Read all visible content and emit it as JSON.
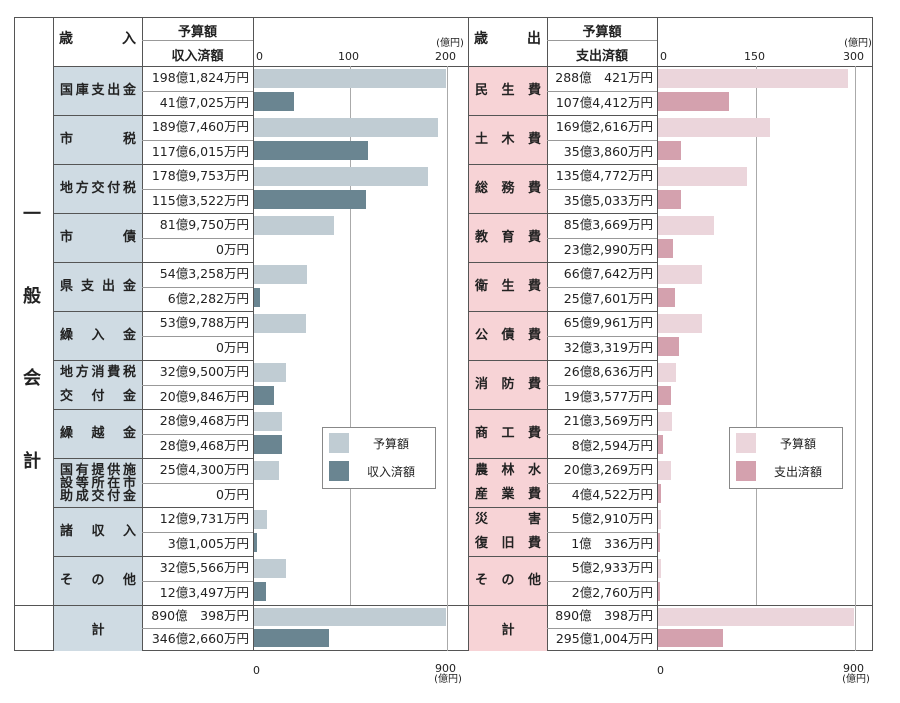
{
  "side_label": [
    "一",
    "般",
    "会",
    "計"
  ],
  "colors": {
    "rev_budget": "#c0ccd3",
    "rev_actual": "#6a8591",
    "exp_budget": "#ebd5db",
    "exp_actual": "#d4a1ae",
    "rev_cat_bg": "#cfdbe3",
    "exp_cat_bg": "#f7d3d6"
  },
  "revenue": {
    "header": {
      "title": "歳　　入",
      "col1": "予算額",
      "col2": "収入済額",
      "unit": "(億円)"
    },
    "legend": {
      "budget": "予算額",
      "actual": "収入済額"
    }
  },
  "expenditure": {
    "header": {
      "title": "歳　　出",
      "col1": "予算額",
      "col2": "支出済額",
      "unit": "(億円)"
    },
    "legend": {
      "budget": "予算額",
      "actual": "支出済額"
    }
  },
  "axis": {
    "rev_ticks": [
      "0",
      "100",
      "200"
    ],
    "exp_ticks": [
      "0",
      "150",
      "300"
    ],
    "rev_total_ticks": [
      "0",
      "900"
    ],
    "exp_total_ticks": [
      "0",
      "900"
    ],
    "unit": "(億円)"
  },
  "chart_data": [
    {
      "type": "bar",
      "title": "一般会計 歳入",
      "xlabel": "億円",
      "xlim": [
        0,
        200
      ],
      "categories": [
        "国庫支出金",
        "市税",
        "地方交付税",
        "市債",
        "県支出金",
        "繰入金",
        "地方消費税交付金",
        "繰越金",
        "国有提供施設等所在市助成交付金",
        "諸収入",
        "その他"
      ],
      "category_labels": [
        "国庫支出金",
        "市　　税",
        "地方交付税",
        "市　　債",
        "県 支 出 金",
        "繰　入　金",
        "地方消費税\n交　付　金",
        "繰　越　金",
        "国有提供施\n設等所在市\n助成交付金",
        "諸　収　入",
        "そ　の　他"
      ],
      "series": [
        {
          "name": "予算額",
          "values": [
            198.1824,
            189.746,
            178.9753,
            81.975,
            54.3258,
            53.9788,
            32.95,
            28.9468,
            25.43,
            12.9731,
            32.5566
          ],
          "labels": [
            "198億1,824万円",
            "189億7,460万円",
            "178億9,753万円",
            "81億9,750万円",
            "54億3,258万円",
            "53億9,788万円",
            "32億9,500万円",
            "28億9,468万円",
            "25億4,300万円",
            "12億9,731万円",
            "32億5,566万円"
          ]
        },
        {
          "name": "収入済額",
          "values": [
            41.7025,
            117.6015,
            115.3522,
            0,
            6.2282,
            0,
            20.9846,
            28.9468,
            0,
            3.1005,
            12.3497
          ],
          "labels": [
            "41億7,025万円",
            "117億6,015万円",
            "115億3,522万円",
            "0万円",
            "6億2,282万円",
            "0万円",
            "20億9,846万円",
            "28億9,468万円",
            "0万円",
            "3億1,005万円",
            "12億3,497万円"
          ]
        }
      ],
      "total": {
        "label": "計",
        "xlim": [
          0,
          900
        ],
        "budget": 890.0398,
        "budget_label": "890億　398万円",
        "actual": 346.266,
        "actual_label": "346億2,660万円"
      }
    },
    {
      "type": "bar",
      "title": "一般会計 歳出",
      "xlabel": "億円",
      "xlim": [
        0,
        300
      ],
      "categories": [
        "民生費",
        "土木費",
        "総務費",
        "教育費",
        "衛生費",
        "公債費",
        "消防費",
        "商工費",
        "農林水産業費",
        "災害復旧費",
        "その他"
      ],
      "category_labels": [
        "民　生　費",
        "土　木　費",
        "総　務　費",
        "教　育　費",
        "衛　生　費",
        "公　債　費",
        "消　防　費",
        "商　工　費",
        "農　林　水\n産　業　費",
        "災　　　害\n復　旧　費",
        "そ　の　他"
      ],
      "series": [
        {
          "name": "予算額",
          "values": [
            288.0421,
            169.2616,
            135.4772,
            85.3669,
            66.7642,
            65.9961,
            26.8636,
            21.3569,
            20.3269,
            5.291,
            5.2933
          ],
          "labels": [
            "288億　421万円",
            "169億2,616万円",
            "135億4,772万円",
            "85億3,669万円",
            "66億7,642万円",
            "65億9,961万円",
            "26億8,636万円",
            "21億3,569万円",
            "20億3,269万円",
            "5億2,910万円",
            "5億2,933万円"
          ]
        },
        {
          "name": "支出済額",
          "values": [
            107.4412,
            35.386,
            35.5033,
            23.299,
            25.7601,
            32.3319,
            19.3577,
            8.2594,
            4.4522,
            1.0336,
            2.276
          ],
          "labels": [
            "107億4,412万円",
            "35億3,860万円",
            "35億5,033万円",
            "23億2,990万円",
            "25億7,601万円",
            "32億3,319万円",
            "19億3,577万円",
            "8億2,594万円",
            "4億4,522万円",
            "1億　336万円",
            "2億2,760万円"
          ]
        }
      ],
      "total": {
        "label": "計",
        "xlim": [
          0,
          900
        ],
        "budget": 890.0398,
        "budget_label": "890億　398万円",
        "actual": 295.1004,
        "actual_label": "295億1,004万円"
      }
    }
  ]
}
